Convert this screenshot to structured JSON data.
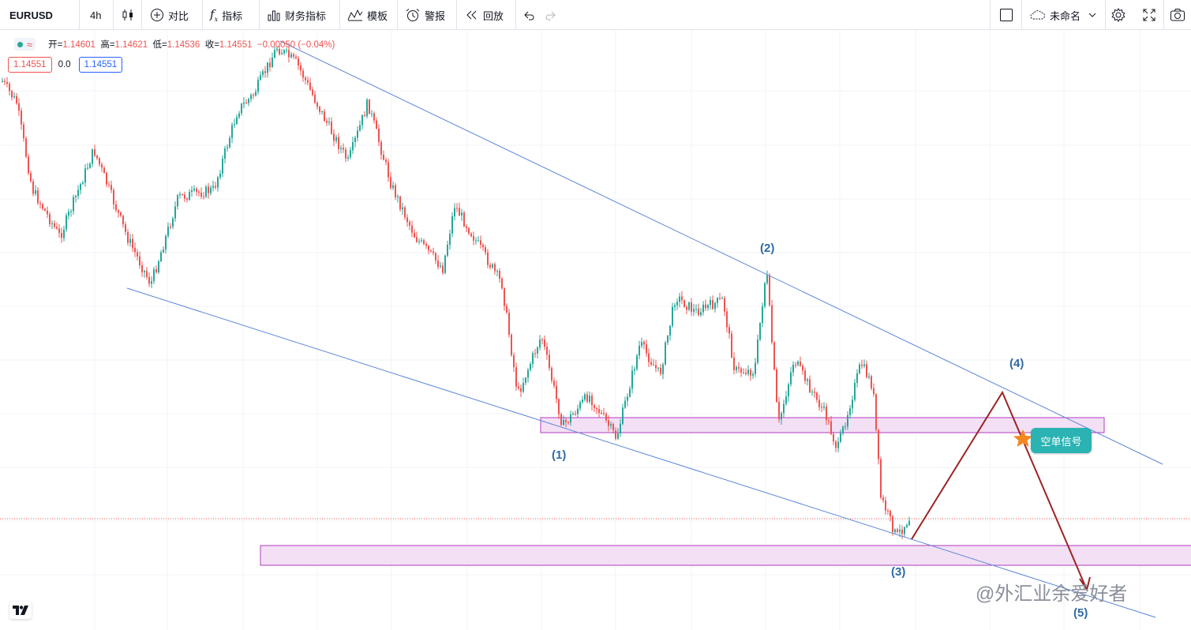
{
  "toolbar": {
    "symbol": "EURUSD",
    "interval": "4h",
    "compare_label": "对比",
    "indicators_label": "指标",
    "financials_label": "财务指标",
    "templates_label": "模板",
    "alert_label": "警报",
    "replay_label": "回放",
    "layout_name": "未命名",
    "icons": [
      "candles-icon",
      "plus-circle-icon",
      "fx-icon",
      "bar-chart-icon",
      "templates-icon",
      "alarm-icon",
      "replay-icon",
      "undo-icon",
      "redo-icon",
      "square-icon",
      "cloud-icon",
      "chevron-down-icon",
      "gear-icon",
      "fullscreen-icon",
      "camera-icon"
    ]
  },
  "legend": {
    "open_label": "开=",
    "open": "1.14601",
    "high_label": "高=",
    "high": "1.14621",
    "low_label": "低=",
    "low": "1.14536",
    "close_label": "收=",
    "close": "1.14551",
    "change": "−0.00050 (−0.04%)"
  },
  "price_boxes": {
    "bid": "1.14551",
    "spread": "0.0",
    "ask": "1.14551"
  },
  "annotations": {
    "wave1": "(1)",
    "wave2": "(2)",
    "wave3": "(3)",
    "wave4": "(4)",
    "wave5": "(5)",
    "signal_label": "空单信号"
  },
  "watermark": "@外汇业余爱好者",
  "colors": {
    "up_candle": "#26a69a",
    "down_candle": "#ef5350",
    "channel_line": "#5b86d6",
    "zone_fill": "#f3e0f5",
    "zone_border": "#b23bc0",
    "projection_line": "#9b2424",
    "signal_bg": "#2bb3b3",
    "star": "#f5871f"
  }
}
